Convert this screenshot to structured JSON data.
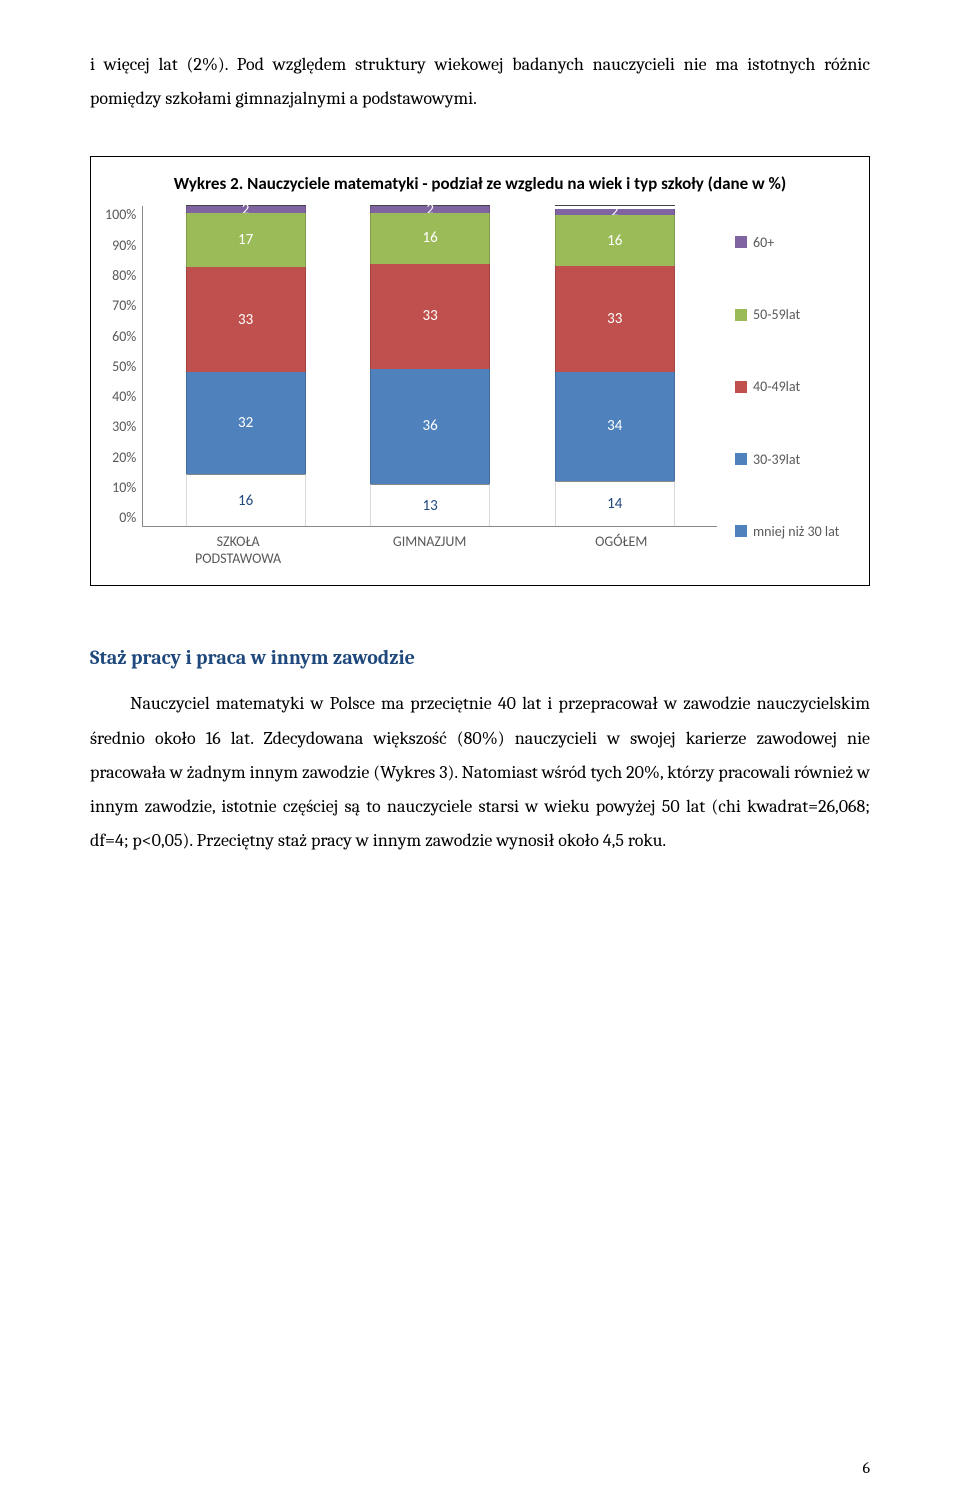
{
  "intro_text": "i więcej lat (2%). Pod względem struktury wiekowej badanych nauczycieli nie ma istotnych różnic pomiędzy szkołami gimnazjalnymi a podstawowymi.",
  "chart": {
    "type": "bar",
    "title": "Wykres 2. Nauczyciele matematyki - podział ze wzgledu na wiek i typ szkoły (dane w %)",
    "y_ticks": [
      "100%",
      "90%",
      "80%",
      "70%",
      "60%",
      "50%",
      "40%",
      "30%",
      "20%",
      "10%",
      "0%"
    ],
    "categories": [
      "SZKOŁA PODSTAWOWA",
      "GIMNAZJUM",
      "OGÓŁEM"
    ],
    "series": [
      {
        "key": "60+",
        "label": "60+",
        "color": "#8064a2"
      },
      {
        "key": "50-59",
        "label": "50-59lat",
        "color": "#9bbb59"
      },
      {
        "key": "40-49",
        "label": "40-49lat",
        "color": "#c0504d"
      },
      {
        "key": "30-39",
        "label": "30-39lat",
        "color": "#4f81bd"
      },
      {
        "key": "lt30",
        "label": "mniej niż 30 lat",
        "color": "#4f81bd"
      }
    ],
    "stacks": [
      {
        "60+": 2,
        "50-59": 17,
        "40-49": 33,
        "30-39": 32,
        "lt30": 16
      },
      {
        "60+": 2,
        "50-59": 16,
        "40-49": 33,
        "30-39": 36,
        "lt30": 13
      },
      {
        "60+": 2,
        "50-59": 16,
        "40-49": 33,
        "30-39": 34,
        "lt30": 14
      }
    ],
    "seg_colors": {
      "60+": "#8064a2",
      "50-59": "#9bbb59",
      "40-49": "#c0504d",
      "30-39": "#4f81bd",
      "lt30": "#ffffff"
    },
    "seg_text_colors": {
      "60+": "#ffffff",
      "50-59": "#ffffff",
      "40-49": "#ffffff",
      "30-39": "#ffffff",
      "lt30": "#1f497d"
    },
    "legend_colors": {
      "60+": "#8064a2",
      "50-59": "#9bbb59",
      "40-49": "#c0504d",
      "30-39": "#4f81bd",
      "lt30": "#4f81bd"
    }
  },
  "section_heading": "Staż pracy i praca w innym zawodzie",
  "section_heading_color": "#1f497d",
  "body_text": "Nauczyciel matematyki w Polsce ma przeciętnie 40 lat i przepracował w zawodzie nauczycielskim średnio około 16 lat. Zdecydowana większość (80%) nauczycieli w swojej karierze zawodowej nie pracowała w żadnym innym zawodzie (Wykres 3). Natomiast wśród tych 20%, którzy pracowali również w innym zawodzie, istotnie częściej są to nauczyciele starsi w wieku powyżej 50 lat (chi kwadrat=26,068; df=4; p<0,05). Przeciętny staż pracy w innym zawodzie wynosił około 4,5 roku.",
  "page_number": "6"
}
